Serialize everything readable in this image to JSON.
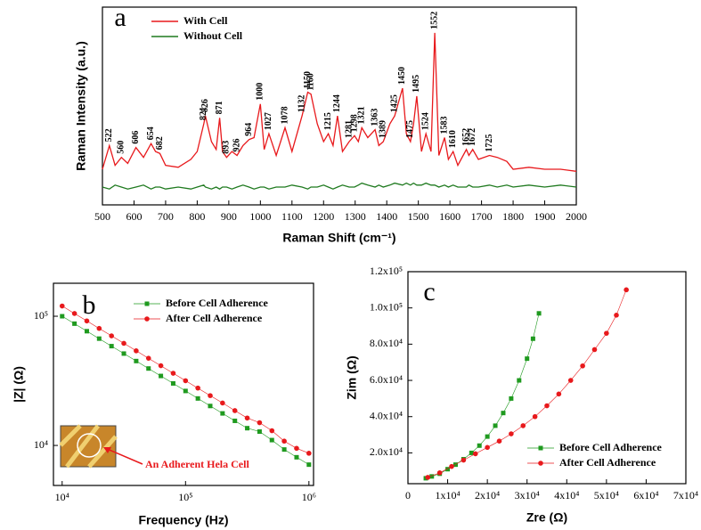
{
  "chart_data": [
    {
      "type": "line",
      "panel_label": "a",
      "xlabel": "Raman Shift (cm⁻¹)",
      "ylabel": "Raman Intensity (a.u.)",
      "x": [
        500,
        522,
        540,
        560,
        580,
        606,
        630,
        654,
        668,
        682,
        700,
        740,
        780,
        800,
        821,
        826,
        845,
        860,
        871,
        880,
        893,
        910,
        926,
        945,
        964,
        980,
        1000,
        1012,
        1027,
        1050,
        1078,
        1100,
        1132,
        1150,
        1160,
        1180,
        1200,
        1215,
        1230,
        1244,
        1260,
        1281,
        1298,
        1310,
        1321,
        1340,
        1363,
        1375,
        1389,
        1410,
        1425,
        1450,
        1462,
        1475,
        1485,
        1495,
        1510,
        1524,
        1540,
        1552,
        1565,
        1583,
        1595,
        1610,
        1625,
        1652,
        1660,
        1672,
        1690,
        1725,
        1750,
        1780,
        1800,
        1850,
        1900,
        1950,
        2000
      ],
      "series": [
        {
          "name": "With Cell",
          "color": "#e8191c",
          "values": [
            18,
            30,
            20,
            24,
            21,
            29,
            24,
            31,
            27,
            26,
            20,
            19,
            23,
            27,
            41,
            45,
            32,
            28,
            44,
            27,
            24,
            27,
            25,
            30,
            33,
            34,
            51,
            28,
            36,
            25,
            39,
            27,
            45,
            57,
            56,
            41,
            32,
            36,
            30,
            45,
            27,
            32,
            35,
            32,
            39,
            34,
            38,
            30,
            32,
            41,
            45,
            59,
            36,
            32,
            41,
            55,
            27,
            36,
            27,
            87,
            25,
            34,
            23,
            27,
            20,
            28,
            25,
            28,
            23,
            25,
            24,
            22,
            18,
            19,
            18,
            18,
            17
          ]
        },
        {
          "name": "Without Cell",
          "color": "#1f7a1f",
          "values": [
            9,
            8,
            10,
            9,
            8,
            9,
            10,
            8,
            9,
            9,
            8,
            9,
            8,
            9,
            10,
            9,
            8,
            9,
            8,
            9,
            9,
            8,
            9,
            10,
            9,
            8,
            9,
            9,
            8,
            9,
            9,
            10,
            9,
            8,
            9,
            9,
            10,
            9,
            8,
            9,
            10,
            9,
            9,
            10,
            11,
            10,
            9,
            10,
            9,
            10,
            11,
            10,
            11,
            10,
            11,
            10,
            10,
            11,
            10,
            10,
            9,
            10,
            9,
            10,
            9,
            9,
            10,
            9,
            9,
            10,
            9,
            10,
            9,
            10,
            9,
            10,
            9
          ]
        }
      ],
      "peaks": [
        522,
        560,
        606,
        654,
        682,
        821,
        826,
        871,
        893,
        926,
        964,
        1000,
        1027,
        1078,
        1132,
        1150,
        1160,
        1215,
        1244,
        1281,
        1298,
        1321,
        1363,
        1389,
        1425,
        1450,
        1475,
        1495,
        1524,
        1552,
        1583,
        1610,
        1652,
        1672,
        1725
      ],
      "xlim": [
        500,
        2000
      ],
      "xticks": [
        500,
        600,
        700,
        800,
        900,
        1000,
        1100,
        1200,
        1300,
        1400,
        1500,
        1600,
        1700,
        1800,
        1900,
        2000
      ],
      "ylim": [
        0,
        100
      ],
      "legend": "upper left"
    },
    {
      "type": "line",
      "panel_label": "b",
      "xlabel": "Frequency (Hz)",
      "ylabel": "|Z| (Ω)",
      "xscale": "log",
      "yscale": "log",
      "x": [
        10000,
        12589,
        15849,
        19953,
        25119,
        31623,
        39811,
        50119,
        63096,
        79433,
        100000,
        125893,
        158489,
        199526,
        251189,
        316228,
        398107,
        501187,
        630957,
        794328,
        1000000
      ],
      "series": [
        {
          "name": "Before Cell Adherence",
          "color": "#1f9a1f",
          "marker": "square",
          "values": [
            100000,
            87600,
            76600,
            67100,
            58700,
            51400,
            45000,
            39400,
            34500,
            30200,
            26400,
            23100,
            20200,
            17700,
            15500,
            13600,
            12800,
            11000,
            9300,
            8100,
            7100
          ]
        },
        {
          "name": "After Cell Adherence",
          "color": "#e8191c",
          "marker": "circle",
          "values": [
            120000,
            105000,
            92000,
            80500,
            70500,
            61700,
            54000,
            47300,
            41400,
            36200,
            31700,
            27800,
            24300,
            21300,
            18600,
            16300,
            15000,
            13000,
            10800,
            9500,
            8700
          ]
        }
      ],
      "xlim": [
        8500,
        1090000
      ],
      "xticks": [
        {
          "value": 10000,
          "label": "10⁴"
        },
        {
          "value": 100000,
          "label": "10⁵"
        },
        {
          "value": 1000000,
          "label": "10⁶"
        }
      ],
      "ylim": [
        4900,
        180000
      ],
      "yticks": [
        {
          "value": 10000,
          "label": "10⁴"
        },
        {
          "value": 100000,
          "label": "10⁵"
        }
      ],
      "legend": "upper right",
      "inset_annotation": "An Adherent Hela Cell"
    },
    {
      "type": "line",
      "panel_label": "c",
      "xlabel": "Zre (Ω)",
      "ylabel": "Zim (Ω)",
      "series": [
        {
          "name": "Before Cell Adherence",
          "color": "#1f9a1f",
          "marker": "square",
          "x": [
            4500,
            6000,
            8000,
            10000,
            12000,
            14000,
            16000,
            18000,
            20000,
            22000,
            24000,
            26000,
            28000,
            30000,
            31500,
            33000
          ],
          "values": [
            6000,
            7000,
            8500,
            11000,
            13500,
            16500,
            20000,
            24000,
            29000,
            35000,
            42000,
            50000,
            60000,
            72000,
            83000,
            97000
          ]
        },
        {
          "name": "After Cell Adherence",
          "color": "#e8191c",
          "marker": "circle",
          "x": [
            5000,
            8000,
            11000,
            14000,
            17000,
            20000,
            23000,
            26000,
            29000,
            32000,
            35000,
            38000,
            41000,
            44000,
            47000,
            50000,
            52500,
            55000
          ],
          "values": [
            6500,
            9000,
            12500,
            16000,
            19500,
            23000,
            26500,
            30500,
            35000,
            40000,
            46000,
            52500,
            60000,
            68000,
            77000,
            86000,
            96000,
            110000
          ]
        }
      ],
      "xlim": [
        0,
        70000
      ],
      "xticks": [
        0,
        {
          "value": 10000,
          "label": "1x10⁴"
        },
        {
          "value": 20000,
          "label": "2x10⁴"
        },
        {
          "value": 30000,
          "label": "3x10⁴"
        },
        {
          "value": 40000,
          "label": "4x10⁴"
        },
        {
          "value": 50000,
          "label": "5x10⁴"
        },
        {
          "value": 60000,
          "label": "6x10⁴"
        },
        {
          "value": 70000,
          "label": "7x10⁴"
        }
      ],
      "ylim": [
        3000,
        120000
      ],
      "yticks": [
        {
          "value": 20000,
          "label": "2.0x10⁴"
        },
        {
          "value": 40000,
          "label": "4.0x10⁴"
        },
        {
          "value": 60000,
          "label": "6.0x10⁴"
        },
        {
          "value": 80000,
          "label": "8.0x10⁴"
        },
        {
          "value": 100000,
          "label": "1.0x10⁵"
        },
        {
          "value": 120000,
          "label": "1.2x10⁵"
        }
      ],
      "legend": "lower right"
    }
  ]
}
